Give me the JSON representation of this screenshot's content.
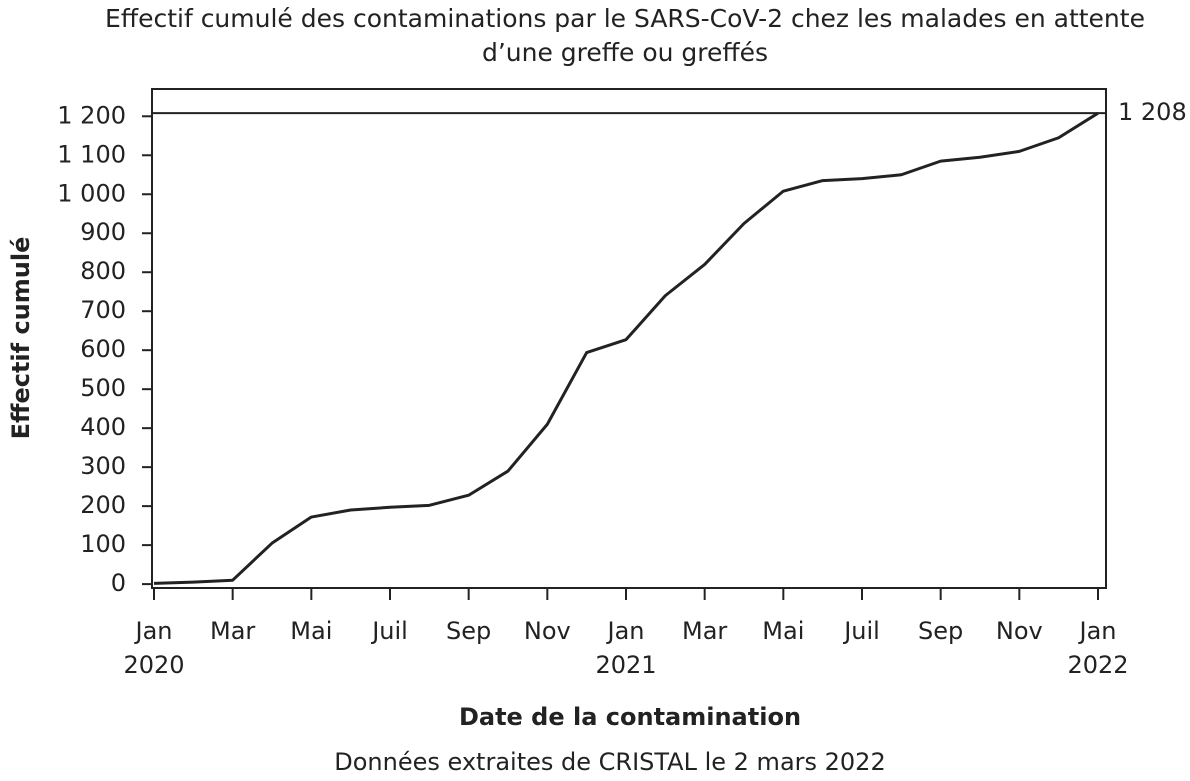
{
  "chart_data": {
    "type": "line",
    "title": "Effectif cumulé des contaminations par le SARS-CoV-2 chez les malades en attente d’une greffe ou greffés",
    "xlabel": "Date de la contamination",
    "ylabel": "Effectif cumulé",
    "source": "Données extraites de CRISTAL le 2 mars 2022",
    "x": [
      "2020-01",
      "2020-02",
      "2020-03",
      "2020-04",
      "2020-05",
      "2020-06",
      "2020-07",
      "2020-08",
      "2020-09",
      "2020-10",
      "2020-11",
      "2020-12",
      "2021-01",
      "2021-02",
      "2021-03",
      "2021-04",
      "2021-05",
      "2021-06",
      "2021-07",
      "2021-08",
      "2021-09",
      "2021-10",
      "2021-11",
      "2021-12",
      "2022-01"
    ],
    "series": [
      {
        "name": "Effectif cumulé",
        "color": "#222222",
        "values": [
          2,
          5,
          10,
          105,
          172,
          190,
          197,
          202,
          228,
          290,
          410,
          594,
          627,
          740,
          820,
          925,
          1008,
          1035,
          1040,
          1050,
          1085,
          1095,
          1110,
          1145,
          1208
        ]
      }
    ],
    "xlim": [
      "2020-01",
      "2022-01"
    ],
    "xticks": [
      {
        "value": "2020-01",
        "label": "Jan 2020"
      },
      {
        "value": "2020-03",
        "label": "Mar"
      },
      {
        "value": "2020-05",
        "label": "Mai"
      },
      {
        "value": "2020-07",
        "label": "Juil"
      },
      {
        "value": "2020-09",
        "label": "Sep"
      },
      {
        "value": "2020-11",
        "label": "Nov"
      },
      {
        "value": "2021-01",
        "label": "Jan 2021"
      },
      {
        "value": "2021-03",
        "label": "Mar"
      },
      {
        "value": "2021-05",
        "label": "Mai"
      },
      {
        "value": "2021-07",
        "label": "Juil"
      },
      {
        "value": "2021-09",
        "label": "Sep"
      },
      {
        "value": "2021-11",
        "label": "Nov"
      },
      {
        "value": "2022-01",
        "label": "Jan 2022"
      }
    ],
    "ylim": [
      -10,
      1270
    ],
    "yticks": [
      0,
      100,
      200,
      300,
      400,
      500,
      600,
      700,
      800,
      900,
      {
        "value": 1000,
        "label": "1 000"
      },
      {
        "value": 1100,
        "label": "1 100"
      },
      {
        "value": 1200,
        "label": "1 200"
      }
    ],
    "reference_line": {
      "value": 1208,
      "label": "1 208"
    }
  }
}
